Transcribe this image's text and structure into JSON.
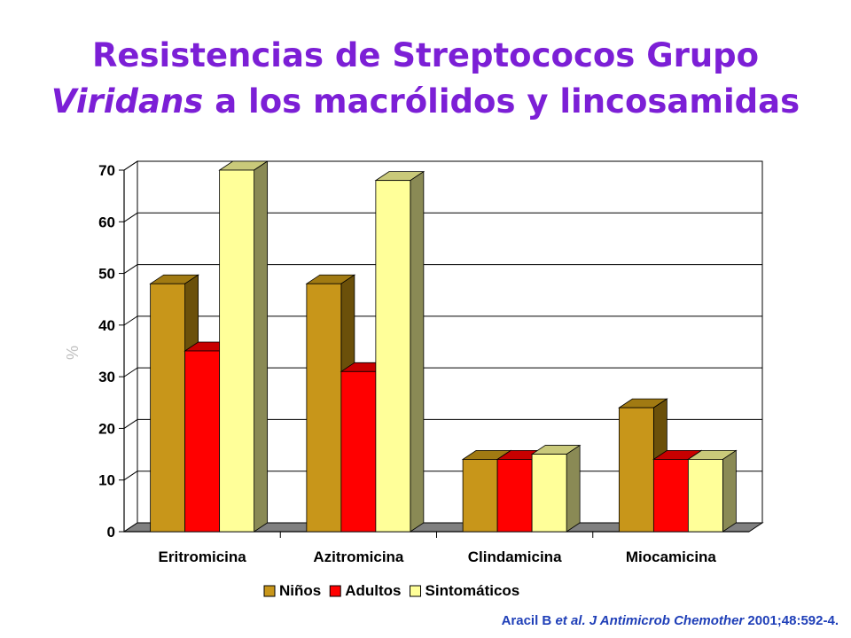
{
  "title": {
    "line1": "Resistencias de Streptococos Grupo",
    "line2_italic": "Viridans",
    "line2_rest": " a los macrólidos y lincosamidas"
  },
  "citation": {
    "authors": "Aracil B ",
    "etal": "et al. J Antimicrob Chemother",
    "ref": " 2001;48:592-4."
  },
  "chart_data": {
    "type": "bar",
    "categories": [
      "Eritromicina",
      "Azitromicina",
      "Clindamicina",
      "Miocamicina"
    ],
    "series": [
      {
        "name": "Niños",
        "values": [
          48,
          48,
          14,
          24
        ]
      },
      {
        "name": "Adultos",
        "values": [
          35,
          31,
          14,
          14
        ]
      },
      {
        "name": "Sintomáticos",
        "values": [
          70,
          68,
          15,
          14
        ]
      }
    ],
    "ylabel": "%",
    "ylim": [
      0,
      70
    ],
    "yticks": [
      0,
      10,
      20,
      30,
      40,
      50,
      60,
      70
    ],
    "grid": true,
    "legend": "bottom",
    "style": "3d",
    "colors": {
      "Niños": {
        "front": "#c8961a",
        "top": "#a17a12",
        "side": "#6b500a"
      },
      "Adultos": {
        "front": "#ff0000",
        "top": "#c80000",
        "side": "#8a0000"
      },
      "Sintomáticos": {
        "front": "#ffff99",
        "top": "#c9c97a",
        "side": "#8a8a55"
      }
    }
  }
}
